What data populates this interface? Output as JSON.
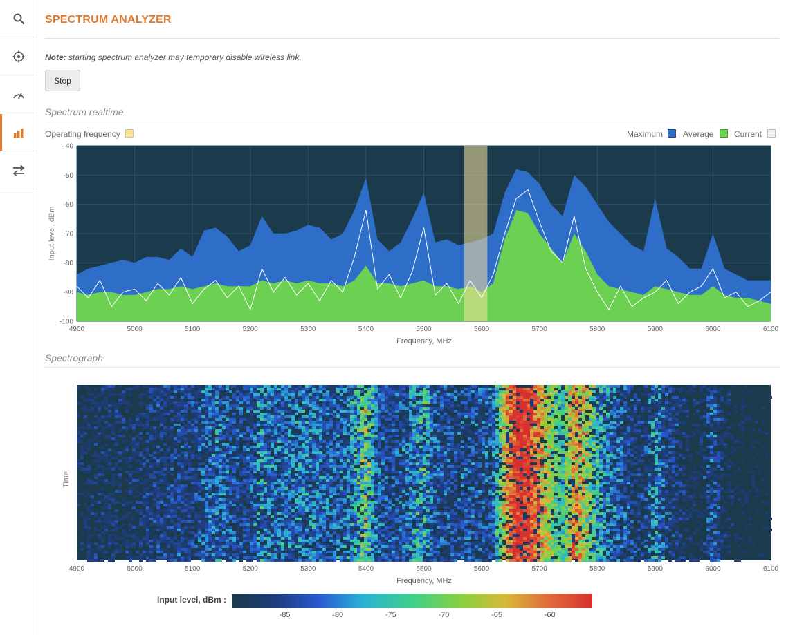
{
  "sidebar": {
    "items": [
      {
        "icon": "search-icon",
        "active": false
      },
      {
        "icon": "crosshair-icon",
        "active": false
      },
      {
        "icon": "speedometer-icon",
        "active": false
      },
      {
        "icon": "bar-chart-icon",
        "active": true
      },
      {
        "icon": "transfer-arrows-icon",
        "active": false
      }
    ]
  },
  "header": {
    "title": "SPECTRUM ANALYZER"
  },
  "note": {
    "label": "Note:",
    "text": "starting spectrum analyzer may temporary disable wireless link."
  },
  "actions": {
    "stop_label": "Stop"
  },
  "colors": {
    "accent": "#e07b2e",
    "plot_background": "#1b3a4b",
    "maximum": "#2f6ec8",
    "average": "#6cd153",
    "current": "#ffffff",
    "operating": "#f7e29a"
  },
  "realtime": {
    "section_title": "Spectrum realtime",
    "operating_label": "Operating frequency",
    "legend": {
      "maximum": "Maximum",
      "average": "Average",
      "current": "Current"
    }
  },
  "spectrograph": {
    "section_title": "Spectrograph",
    "colorbar_label": "Input level, dBm :",
    "colorbar_ticks": [
      "-85",
      "-80",
      "-75",
      "-70",
      "-65",
      "-60"
    ]
  },
  "chart_data": [
    {
      "type": "area",
      "xlabel": "Frequency, MHz",
      "ylabel": "Input level, dBm",
      "xlim": [
        4900,
        6100
      ],
      "ylim": [
        -100,
        -40
      ],
      "xticks": [
        4900,
        5000,
        5100,
        5200,
        5300,
        5400,
        5500,
        5600,
        5700,
        5800,
        5900,
        6000,
        6100
      ],
      "yticks": [
        -40,
        -50,
        -60,
        -70,
        -80,
        -90,
        -100
      ],
      "grid": true,
      "operating_frequency": [
        5570,
        5610
      ],
      "x": [
        4900,
        4920,
        4940,
        4960,
        4980,
        5000,
        5020,
        5040,
        5060,
        5080,
        5100,
        5120,
        5140,
        5160,
        5180,
        5200,
        5220,
        5240,
        5260,
        5280,
        5300,
        5320,
        5340,
        5360,
        5380,
        5400,
        5420,
        5440,
        5460,
        5480,
        5500,
        5520,
        5540,
        5560,
        5580,
        5600,
        5620,
        5640,
        5660,
        5680,
        5700,
        5720,
        5740,
        5760,
        5780,
        5800,
        5820,
        5840,
        5860,
        5880,
        5900,
        5920,
        5940,
        5960,
        5980,
        6000,
        6020,
        6040,
        6060,
        6080,
        6100
      ],
      "series": [
        {
          "name": "Maximum",
          "values": [
            -84,
            -82,
            -81,
            -80,
            -79,
            -80,
            -78,
            -78,
            -79,
            -75,
            -78,
            -69,
            -68,
            -71,
            -76,
            -74,
            -64,
            -70,
            -70,
            -69,
            -67,
            -68,
            -72,
            -70,
            -62,
            -51,
            -72,
            -76,
            -73,
            -65,
            -56,
            -73,
            -72,
            -74,
            -73,
            -72,
            -70,
            -56,
            -48,
            -49,
            -53,
            -60,
            -64,
            -50,
            -54,
            -60,
            -66,
            -70,
            -74,
            -76,
            -58,
            -75,
            -78,
            -82,
            -82,
            -70,
            -82,
            -84,
            -86,
            -86,
            -86
          ]
        },
        {
          "name": "Average",
          "values": [
            -90,
            -91,
            -90,
            -90,
            -91,
            -91,
            -90,
            -89,
            -89,
            -88,
            -89,
            -88,
            -87,
            -88,
            -88,
            -88,
            -86,
            -87,
            -86,
            -87,
            -86,
            -87,
            -87,
            -88,
            -86,
            -81,
            -87,
            -87,
            -88,
            -87,
            -86,
            -88,
            -88,
            -89,
            -88,
            -90,
            -87,
            -72,
            -62,
            -63,
            -70,
            -75,
            -80,
            -70,
            -76,
            -84,
            -88,
            -89,
            -90,
            -91,
            -88,
            -89,
            -90,
            -91,
            -91,
            -88,
            -91,
            -92,
            -92,
            -93,
            -94
          ]
        },
        {
          "name": "Current",
          "values": [
            -88,
            -92,
            -86,
            -95,
            -90,
            -89,
            -93,
            -87,
            -91,
            -85,
            -94,
            -89,
            -86,
            -92,
            -88,
            -96,
            -82,
            -90,
            -85,
            -91,
            -87,
            -93,
            -86,
            -90,
            -78,
            -62,
            -89,
            -84,
            -92,
            -83,
            -68,
            -91,
            -87,
            -94,
            -86,
            -92,
            -84,
            -70,
            -58,
            -55,
            -66,
            -76,
            -80,
            -64,
            -82,
            -90,
            -96,
            -88,
            -95,
            -92,
            -90,
            -86,
            -94,
            -90,
            -88,
            -82,
            -92,
            -90,
            -95,
            -93,
            -90
          ]
        }
      ]
    },
    {
      "type": "heatmap",
      "xlabel": "Frequency, MHz",
      "ylabel": "Time",
      "xlim": [
        4900,
        6100
      ],
      "xticks": [
        4900,
        5000,
        5100,
        5200,
        5300,
        5400,
        5500,
        5600,
        5700,
        5800,
        5900,
        6000,
        6100
      ],
      "color_range": [
        -88,
        -58
      ],
      "grid": false
    }
  ]
}
